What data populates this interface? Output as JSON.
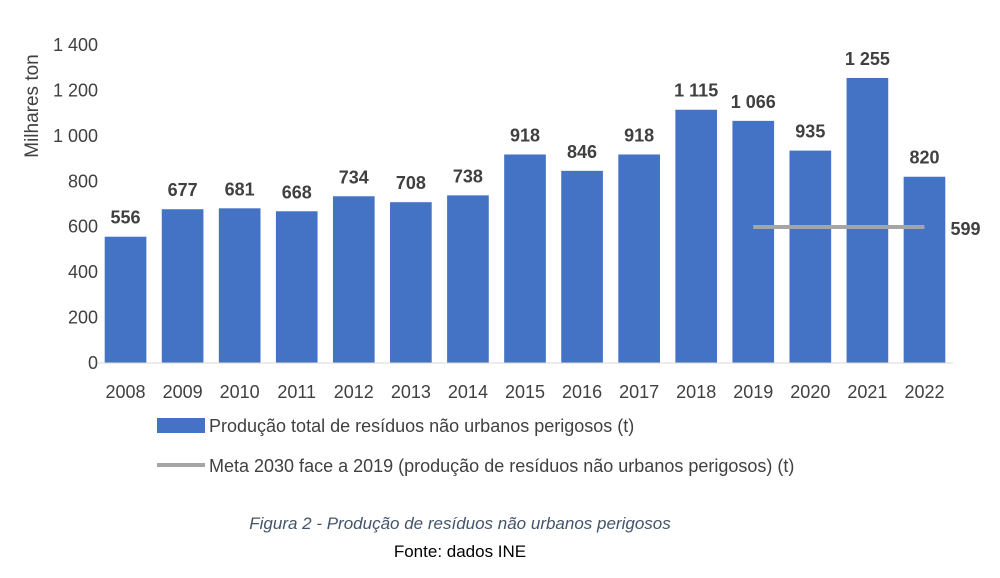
{
  "chart_data": {
    "type": "bar",
    "categories": [
      "2008",
      "2009",
      "2010",
      "2011",
      "2012",
      "2013",
      "2014",
      "2015",
      "2016",
      "2017",
      "2018",
      "2019",
      "2020",
      "2021",
      "2022"
    ],
    "series": [
      {
        "name": "Produção total de resíduos não urbanos perigosos (t)",
        "values": [
          556,
          677,
          681,
          668,
          734,
          708,
          738,
          918,
          846,
          918,
          1115,
          1066,
          935,
          1255,
          820
        ],
        "value_labels": [
          "556",
          "677",
          "681",
          "668",
          "734",
          "708",
          "738",
          "918",
          "846",
          "918",
          "1 115",
          "1 066",
          "935",
          "1 255",
          "820"
        ],
        "color": "#4472c4"
      }
    ],
    "target_line": {
      "name": "Meta 2030 face a 2019 (produção de resíduos não urbanos perigosos) (t)",
      "value": 599,
      "value_label": "599",
      "from_category": "2019",
      "to_category": "2022",
      "color": "#a5a5a5"
    },
    "ylabel": "Milhares ton",
    "xlabel": "",
    "ylim": [
      0,
      1400
    ],
    "yticks": [
      0,
      200,
      400,
      600,
      800,
      1000,
      1200,
      1400
    ],
    "ytick_labels": [
      "0",
      "200",
      "400",
      "600",
      "800",
      "1 000",
      "1 200",
      "1 400"
    ],
    "grid": false,
    "legend_position": "bottom"
  },
  "caption": {
    "title": "Figura 2 - Produção de resíduos não urbanos perigosos",
    "source": "Fonte: dados INE"
  }
}
